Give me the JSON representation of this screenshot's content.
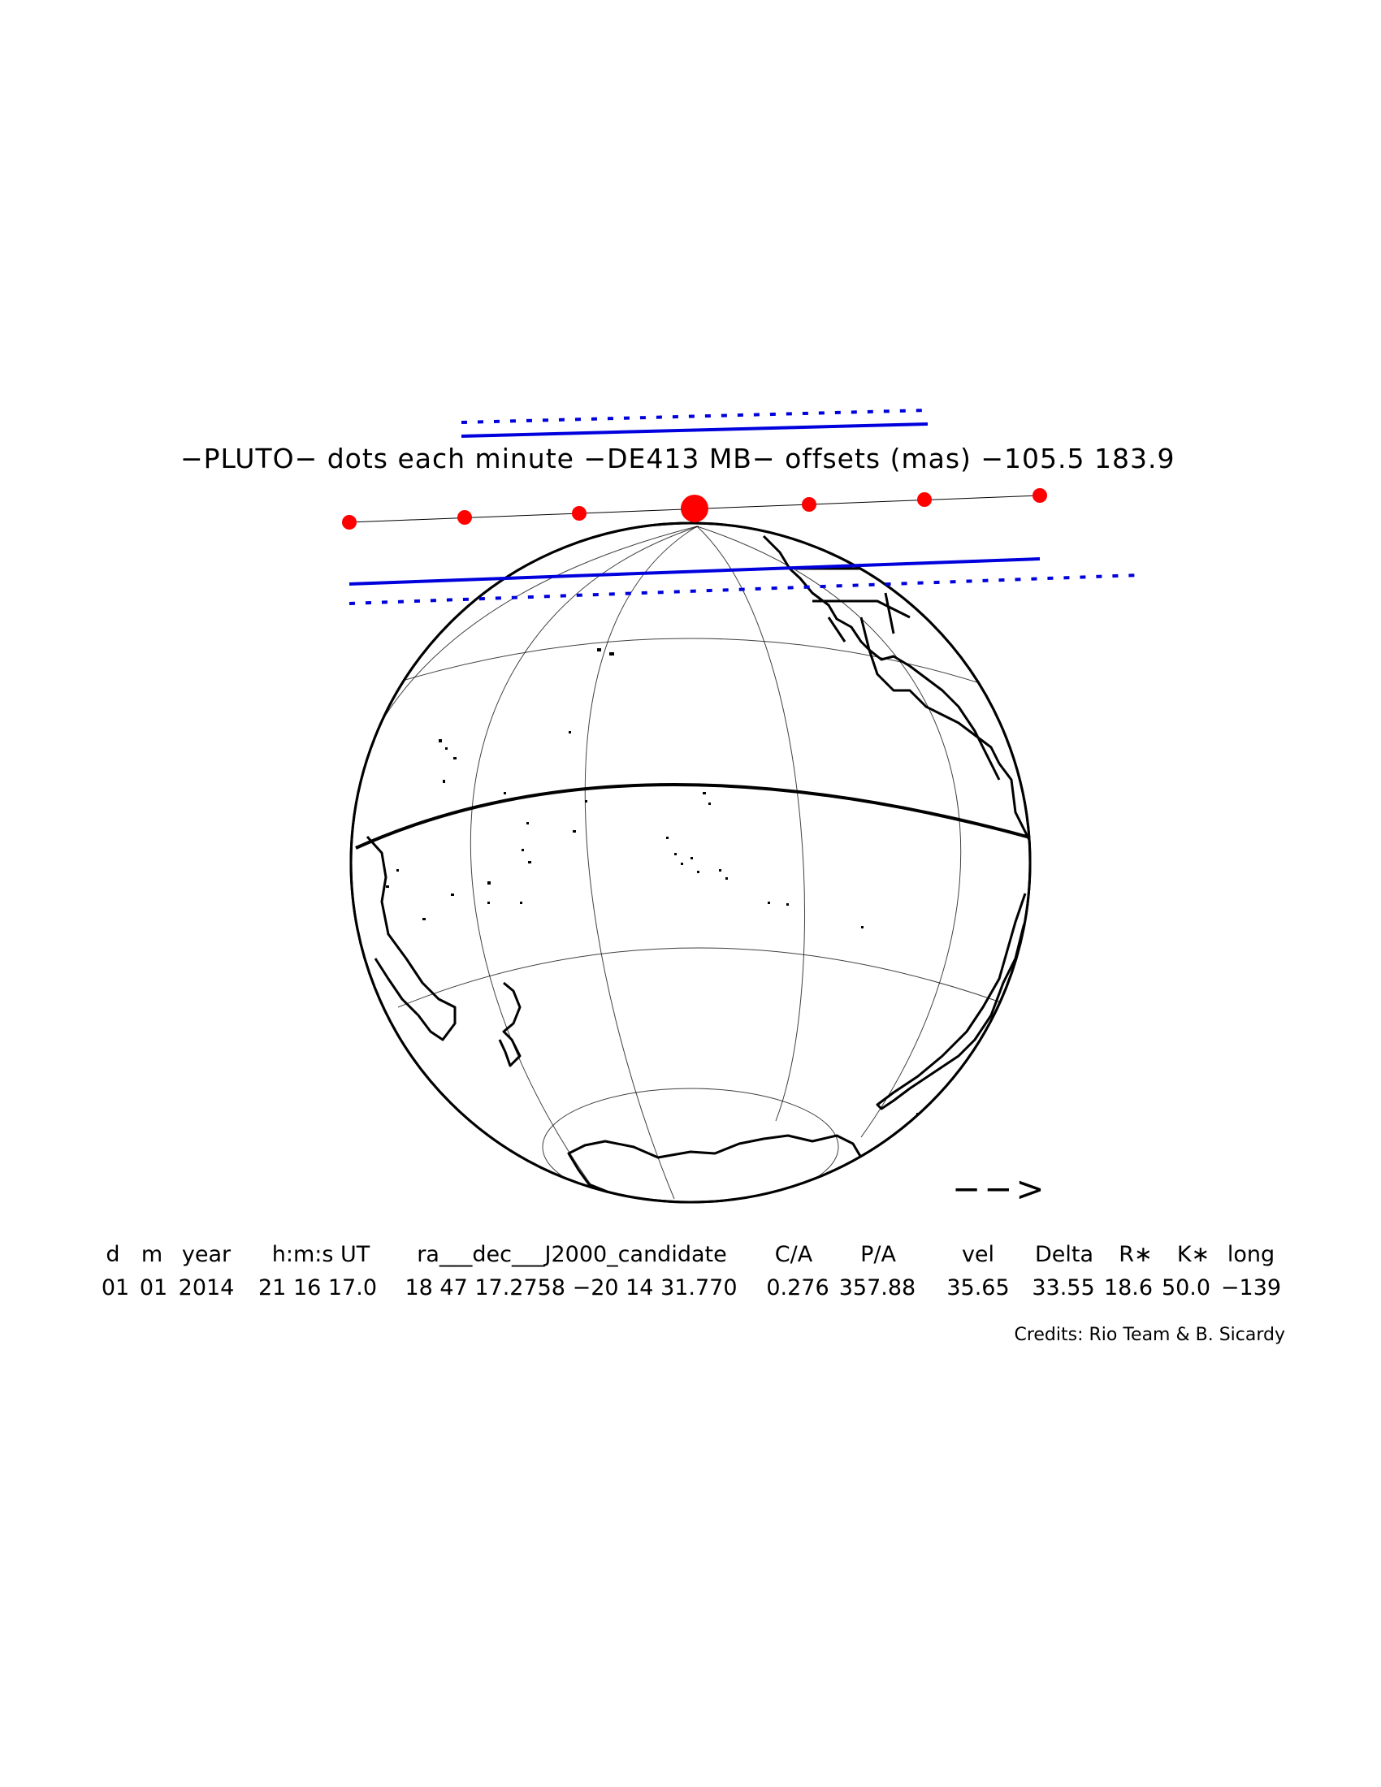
{
  "title": "−PLUTO− dots each minute −DE413 MB− offsets (mas) −105.5   183.9",
  "direction_arrow": "−−>",
  "table": {
    "headers": [
      "d",
      "m",
      "year",
      "h:m:s UT",
      "ra___dec___J2000_candidate",
      "C/A",
      "P/A",
      "vel",
      "Delta",
      "R∗",
      "K∗",
      "long"
    ],
    "values": [
      "01",
      "01",
      "2014",
      "21 16 17.0",
      "18 47 17.2758 −20 14 31.770",
      "0.276",
      "357.88",
      "35.65",
      "33.55",
      "18.6",
      "50.0",
      "−139"
    ]
  },
  "credits": "Credits: Rio Team & B. Sicardy",
  "colors": {
    "shadow_path": "#0000dd",
    "dots": "#ff0000",
    "outline": "#000000"
  },
  "path_dots": {
    "count": 7,
    "interval": "1 minute",
    "closest_approach_index": 3
  }
}
